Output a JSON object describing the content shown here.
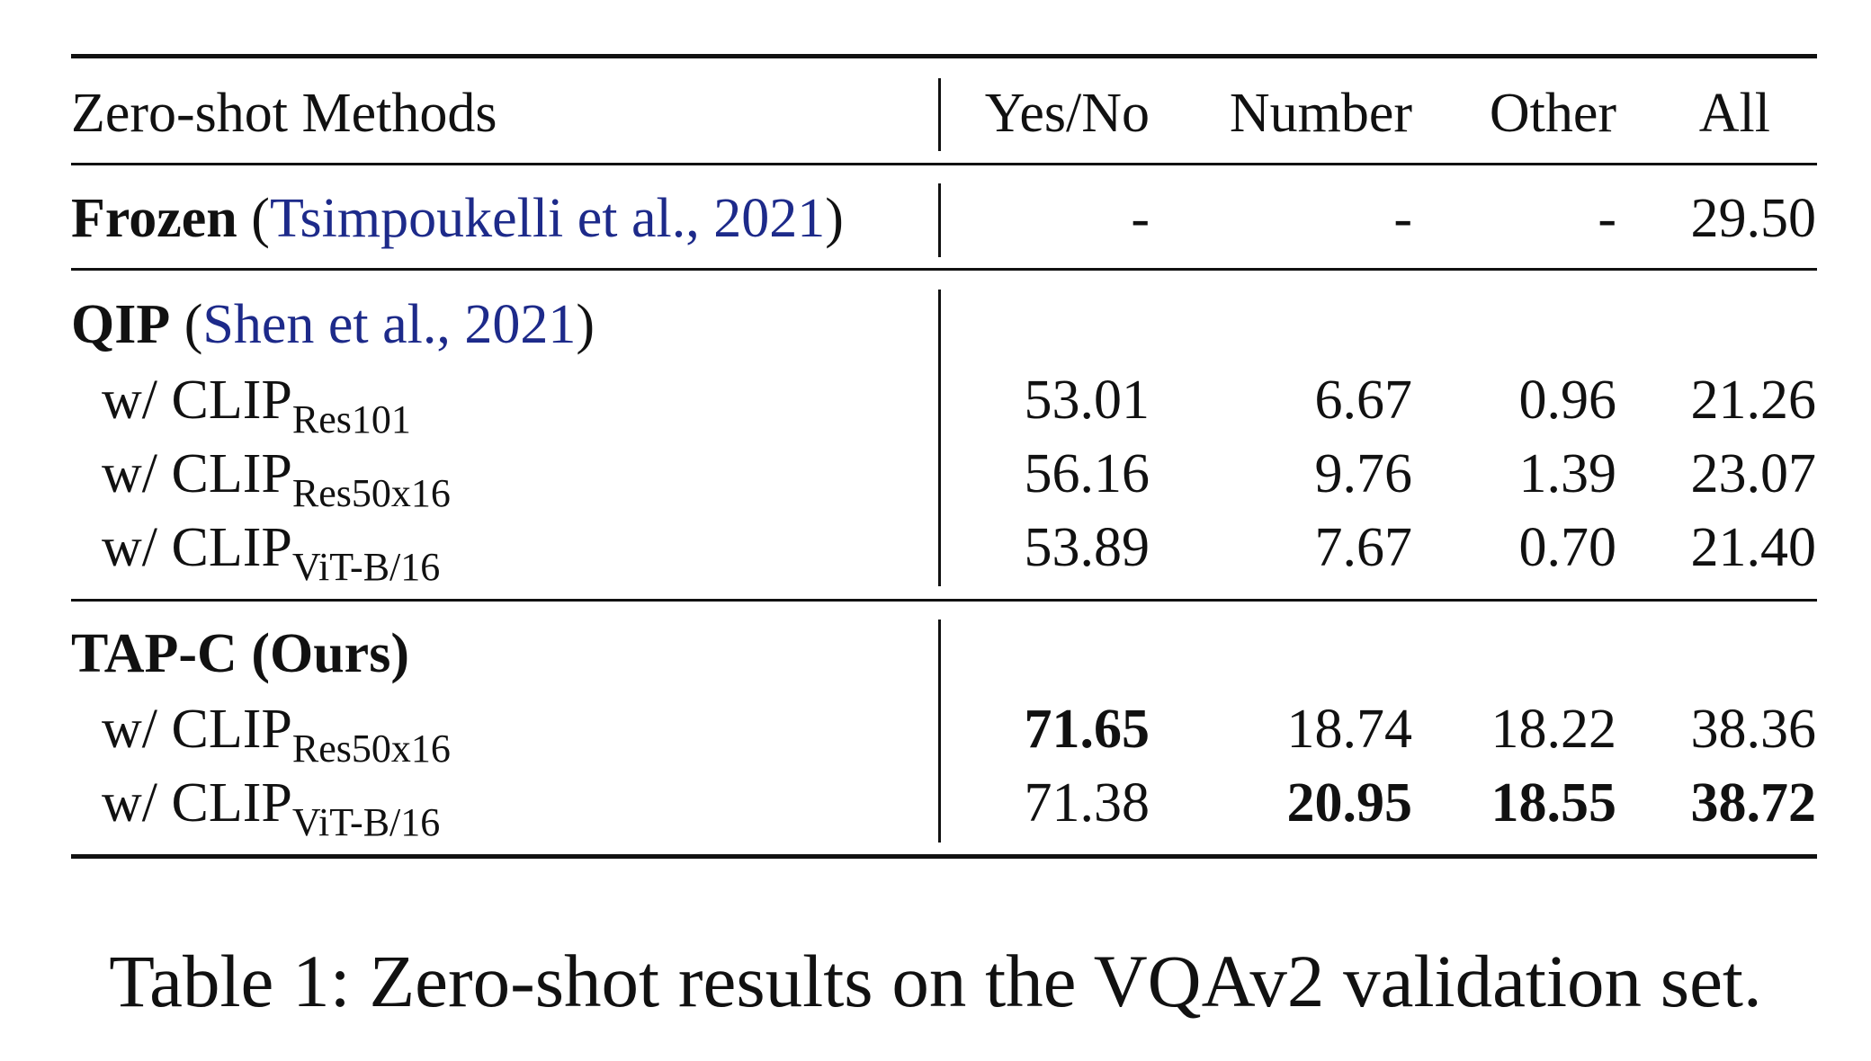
{
  "table": {
    "header": {
      "method": "Zero-shot Methods",
      "columns": [
        "Yes/No",
        "Number",
        "Other",
        "All"
      ]
    },
    "frozen": {
      "name": "Frozen",
      "citation": "Tsimpoukelli et al., 2021",
      "values": [
        "-",
        "-",
        "-",
        "29.50"
      ]
    },
    "qip": {
      "name": "QIP",
      "citation": "Shen et al., 2021",
      "rows": [
        {
          "prefix": "w/ CLIP",
          "sub": "Res101",
          "values": [
            "53.01",
            "6.67",
            "0.96",
            "21.26"
          ]
        },
        {
          "prefix": "w/ CLIP",
          "sub": "Res50x16",
          "values": [
            "56.16",
            "9.76",
            "1.39",
            "23.07"
          ]
        },
        {
          "prefix": "w/ CLIP",
          "sub": "ViT-B/16",
          "values": [
            "53.89",
            "7.67",
            "0.70",
            "21.40"
          ]
        }
      ]
    },
    "tapc": {
      "name": "TAP-C (Ours)",
      "rows": [
        {
          "prefix": "w/ CLIP",
          "sub": "Res50x16",
          "values": [
            "71.65",
            "18.74",
            "18.22",
            "38.36"
          ]
        },
        {
          "prefix": "w/ CLIP",
          "sub": "ViT-B/16",
          "values": [
            "71.38",
            "20.95",
            "18.55",
            "38.72"
          ]
        }
      ]
    }
  },
  "caption": "Table 1: Zero-shot results on the VQAv2 validation set."
}
